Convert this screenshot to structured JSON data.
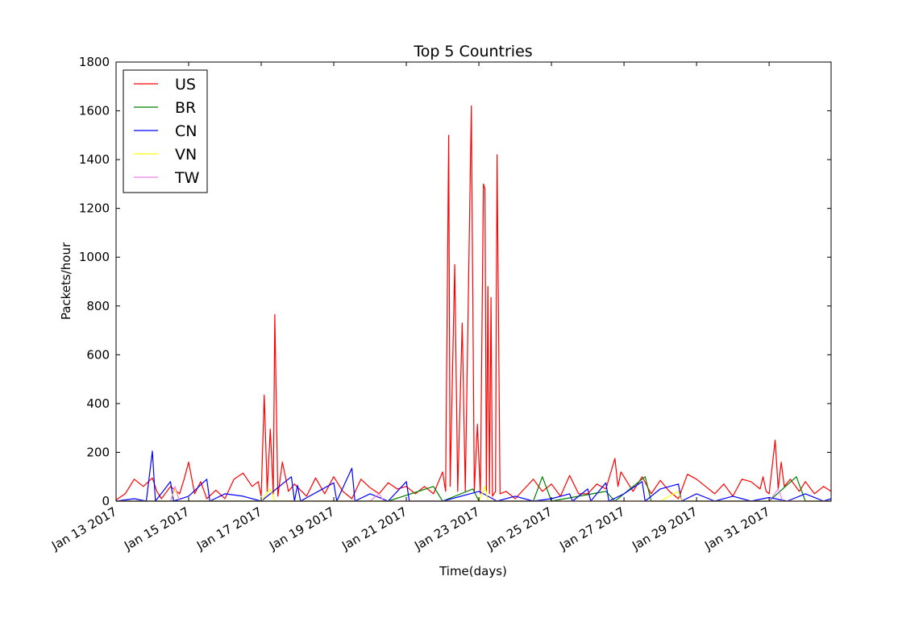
{
  "chart_data": {
    "type": "line",
    "title": "Top 5 Countries",
    "xlabel": "Time(days)",
    "ylabel": "Packets/hour",
    "ylim": [
      0,
      1800
    ],
    "xlim": [
      "2017-01-13",
      "2017-02-01T17:00"
    ],
    "x_ticks": [
      "Jan 13 2017",
      "Jan 15 2017",
      "Jan 17 2017",
      "Jan 19 2017",
      "Jan 21 2017",
      "Jan 23 2017",
      "Jan 25 2017",
      "Jan 27 2017",
      "Jan 29 2017",
      "Jan 31 2017"
    ],
    "y_ticks": [
      0,
      200,
      400,
      600,
      800,
      1000,
      1200,
      1400,
      1600,
      1800
    ],
    "legend_position": "upper-left",
    "grid": false,
    "series": [
      {
        "name": "US",
        "color": "#ff0000",
        "points": [
          [
            "2017-01-13T00:00",
            5
          ],
          [
            "2017-01-13T06:00",
            30
          ],
          [
            "2017-01-13T12:00",
            90
          ],
          [
            "2017-01-13T18:00",
            60
          ],
          [
            "2017-01-14T00:00",
            95
          ],
          [
            "2017-01-14T03:00",
            40
          ],
          [
            "2017-01-14T06:00",
            10
          ],
          [
            "2017-01-14T12:00",
            60
          ],
          [
            "2017-01-14T18:00",
            30
          ],
          [
            "2017-01-14T21:00",
            90
          ],
          [
            "2017-01-15T00:00",
            160
          ],
          [
            "2017-01-15T04:00",
            30
          ],
          [
            "2017-01-15T08:00",
            80
          ],
          [
            "2017-01-15T12:00",
            10
          ],
          [
            "2017-01-15T18:00",
            45
          ],
          [
            "2017-01-16T00:00",
            10
          ],
          [
            "2017-01-16T06:00",
            90
          ],
          [
            "2017-01-16T12:00",
            115
          ],
          [
            "2017-01-16T18:00",
            60
          ],
          [
            "2017-01-16T22:00",
            80
          ],
          [
            "2017-01-17T00:00",
            20
          ],
          [
            "2017-01-17T02:00",
            435
          ],
          [
            "2017-01-17T04:00",
            40
          ],
          [
            "2017-01-17T06:00",
            295
          ],
          [
            "2017-01-17T08:00",
            30
          ],
          [
            "2017-01-17T09:00",
            765
          ],
          [
            "2017-01-17T11:00",
            20
          ],
          [
            "2017-01-17T14:00",
            160
          ],
          [
            "2017-01-17T18:00",
            40
          ],
          [
            "2017-01-17T22:00",
            70
          ],
          [
            "2017-01-18T06:00",
            20
          ],
          [
            "2017-01-18T12:00",
            95
          ],
          [
            "2017-01-18T18:00",
            30
          ],
          [
            "2017-01-19T00:00",
            100
          ],
          [
            "2017-01-19T06:00",
            40
          ],
          [
            "2017-01-19T12:00",
            10
          ],
          [
            "2017-01-19T18:00",
            90
          ],
          [
            "2017-01-20T00:00",
            55
          ],
          [
            "2017-01-20T06:00",
            30
          ],
          [
            "2017-01-20T12:00",
            75
          ],
          [
            "2017-01-20T18:00",
            50
          ],
          [
            "2017-01-21T00:00",
            60
          ],
          [
            "2017-01-21T06:00",
            30
          ],
          [
            "2017-01-21T12:00",
            60
          ],
          [
            "2017-01-21T18:00",
            30
          ],
          [
            "2017-01-22T00:00",
            120
          ],
          [
            "2017-01-22T02:00",
            40
          ],
          [
            "2017-01-22T04:00",
            1500
          ],
          [
            "2017-01-22T05:00",
            60
          ],
          [
            "2017-01-22T08:00",
            970
          ],
          [
            "2017-01-22T10:00",
            40
          ],
          [
            "2017-01-22T13:00",
            730
          ],
          [
            "2017-01-22T15:00",
            40
          ],
          [
            "2017-01-22T19:00",
            1620
          ],
          [
            "2017-01-22T21:00",
            40
          ],
          [
            "2017-01-22T23:00",
            315
          ],
          [
            "2017-01-23T01:00",
            30
          ],
          [
            "2017-01-23T03:00",
            1300
          ],
          [
            "2017-01-23T04:00",
            1280
          ],
          [
            "2017-01-23T05:00",
            40
          ],
          [
            "2017-01-23T06:00",
            880
          ],
          [
            "2017-01-23T07:00",
            30
          ],
          [
            "2017-01-23T08:00",
            835
          ],
          [
            "2017-01-23T09:00",
            20
          ],
          [
            "2017-01-23T11:00",
            40
          ],
          [
            "2017-01-23T12:00",
            1420
          ],
          [
            "2017-01-23T14:00",
            30
          ],
          [
            "2017-01-23T18:00",
            40
          ],
          [
            "2017-01-24T00:00",
            10
          ],
          [
            "2017-01-24T06:00",
            50
          ],
          [
            "2017-01-24T12:00",
            90
          ],
          [
            "2017-01-24T18:00",
            40
          ],
          [
            "2017-01-25T00:00",
            70
          ],
          [
            "2017-01-25T06:00",
            20
          ],
          [
            "2017-01-25T12:00",
            105
          ],
          [
            "2017-01-25T18:00",
            30
          ],
          [
            "2017-01-26T00:00",
            30
          ],
          [
            "2017-01-26T06:00",
            70
          ],
          [
            "2017-01-26T12:00",
            50
          ],
          [
            "2017-01-26T18:00",
            175
          ],
          [
            "2017-01-26T20:00",
            60
          ],
          [
            "2017-01-26T22:00",
            120
          ],
          [
            "2017-01-27T06:00",
            40
          ],
          [
            "2017-01-27T12:00",
            100
          ],
          [
            "2017-01-27T18:00",
            30
          ],
          [
            "2017-01-28T00:00",
            85
          ],
          [
            "2017-01-28T06:00",
            40
          ],
          [
            "2017-01-28T12:00",
            10
          ],
          [
            "2017-01-28T18:00",
            110
          ],
          [
            "2017-01-29T00:00",
            90
          ],
          [
            "2017-01-29T06:00",
            60
          ],
          [
            "2017-01-29T12:00",
            30
          ],
          [
            "2017-01-29T18:00",
            70
          ],
          [
            "2017-01-30T00:00",
            20
          ],
          [
            "2017-01-30T06:00",
            90
          ],
          [
            "2017-01-30T12:00",
            80
          ],
          [
            "2017-01-30T18:00",
            50
          ],
          [
            "2017-01-30T20:00",
            100
          ],
          [
            "2017-01-30T22:00",
            40
          ],
          [
            "2017-01-31T00:00",
            30
          ],
          [
            "2017-01-31T04:00",
            250
          ],
          [
            "2017-01-31T06:00",
            50
          ],
          [
            "2017-01-31T08:00",
            160
          ],
          [
            "2017-01-31T10:00",
            60
          ],
          [
            "2017-01-31T14:00",
            90
          ],
          [
            "2017-01-31T20:00",
            40
          ],
          [
            "2017-02-01T00:00",
            80
          ],
          [
            "2017-02-01T06:00",
            30
          ],
          [
            "2017-02-01T12:00",
            60
          ],
          [
            "2017-02-01T17:00",
            40
          ]
        ]
      },
      {
        "name": "BR",
        "color": "#008000",
        "points": [
          [
            "2017-01-13T00:00",
            0
          ],
          [
            "2017-01-19T00:00",
            0
          ],
          [
            "2017-01-20T12:00",
            0
          ],
          [
            "2017-01-21T18:00",
            60
          ],
          [
            "2017-01-22T00:00",
            0
          ],
          [
            "2017-01-22T20:00",
            50
          ],
          [
            "2017-01-23T00:00",
            0
          ],
          [
            "2017-01-24T12:00",
            0
          ],
          [
            "2017-01-24T18:00",
            100
          ],
          [
            "2017-01-25T00:00",
            0
          ],
          [
            "2017-01-26T12:00",
            40
          ],
          [
            "2017-01-26T18:00",
            0
          ],
          [
            "2017-01-27T14:00",
            100
          ],
          [
            "2017-01-27T18:00",
            0
          ],
          [
            "2017-01-28T00:00",
            0
          ],
          [
            "2017-01-29T00:00",
            0
          ],
          [
            "2017-01-30T00:00",
            0
          ],
          [
            "2017-01-31T00:00",
            0
          ],
          [
            "2017-01-31T18:00",
            100
          ],
          [
            "2017-02-01T00:00",
            0
          ],
          [
            "2017-02-01T17:00",
            0
          ]
        ]
      },
      {
        "name": "CN",
        "color": "#0000ff",
        "points": [
          [
            "2017-01-13T00:00",
            0
          ],
          [
            "2017-01-13T12:00",
            10
          ],
          [
            "2017-01-13T20:00",
            0
          ],
          [
            "2017-01-14T00:00",
            205
          ],
          [
            "2017-01-14T02:00",
            0
          ],
          [
            "2017-01-14T12:00",
            80
          ],
          [
            "2017-01-14T14:00",
            0
          ],
          [
            "2017-01-15T00:00",
            20
          ],
          [
            "2017-01-15T12:00",
            90
          ],
          [
            "2017-01-15T14:00",
            0
          ],
          [
            "2017-01-16T00:00",
            30
          ],
          [
            "2017-01-16T12:00",
            20
          ],
          [
            "2017-01-17T00:00",
            0
          ],
          [
            "2017-01-17T20:00",
            100
          ],
          [
            "2017-01-17T22:00",
            0
          ],
          [
            "2017-01-18T00:00",
            65
          ],
          [
            "2017-01-18T02:00",
            0
          ],
          [
            "2017-01-19T00:00",
            75
          ],
          [
            "2017-01-19T02:00",
            0
          ],
          [
            "2017-01-19T12:00",
            135
          ],
          [
            "2017-01-19T14:00",
            0
          ],
          [
            "2017-01-20T00:00",
            30
          ],
          [
            "2017-01-20T12:00",
            0
          ],
          [
            "2017-01-21T00:00",
            80
          ],
          [
            "2017-01-21T02:00",
            0
          ],
          [
            "2017-01-22T00:00",
            0
          ],
          [
            "2017-01-23T00:00",
            40
          ],
          [
            "2017-01-23T12:00",
            0
          ],
          [
            "2017-01-24T00:00",
            20
          ],
          [
            "2017-01-24T12:00",
            0
          ],
          [
            "2017-01-25T00:00",
            10
          ],
          [
            "2017-01-25T12:00",
            30
          ],
          [
            "2017-01-25T14:00",
            0
          ],
          [
            "2017-01-26T00:00",
            50
          ],
          [
            "2017-01-26T02:00",
            0
          ],
          [
            "2017-01-26T12:00",
            75
          ],
          [
            "2017-01-26T14:00",
            0
          ],
          [
            "2017-01-27T00:00",
            30
          ],
          [
            "2017-01-27T12:00",
            80
          ],
          [
            "2017-01-27T14:00",
            0
          ],
          [
            "2017-01-28T00:00",
            50
          ],
          [
            "2017-01-28T12:00",
            70
          ],
          [
            "2017-01-28T14:00",
            0
          ],
          [
            "2017-01-29T00:00",
            30
          ],
          [
            "2017-01-29T12:00",
            0
          ],
          [
            "2017-01-30T00:00",
            20
          ],
          [
            "2017-01-30T12:00",
            0
          ],
          [
            "2017-01-31T00:00",
            15
          ],
          [
            "2017-01-31T12:00",
            0
          ],
          [
            "2017-02-01T00:00",
            30
          ],
          [
            "2017-02-01T12:00",
            0
          ],
          [
            "2017-02-01T17:00",
            10
          ]
        ]
      },
      {
        "name": "VN",
        "color": "#ffff00",
        "points": [
          [
            "2017-01-13T00:00",
            0
          ],
          [
            "2017-01-14T12:00",
            0
          ],
          [
            "2017-01-14T15:00",
            50
          ],
          [
            "2017-01-14T18:00",
            0
          ],
          [
            "2017-01-17T00:00",
            0
          ],
          [
            "2017-01-17T06:00",
            50
          ],
          [
            "2017-01-17T09:00",
            0
          ],
          [
            "2017-01-20T00:00",
            0
          ],
          [
            "2017-01-23T00:00",
            0
          ],
          [
            "2017-01-23T04:00",
            60
          ],
          [
            "2017-01-23T06:00",
            0
          ],
          [
            "2017-01-26T00:00",
            0
          ],
          [
            "2017-01-28T00:00",
            0
          ],
          [
            "2017-01-28T12:00",
            40
          ],
          [
            "2017-01-28T14:00",
            0
          ],
          [
            "2017-02-01T17:00",
            0
          ]
        ]
      },
      {
        "name": "TW",
        "color": "#ee82ee",
        "points": [
          [
            "2017-01-13T00:00",
            0
          ],
          [
            "2017-01-14T12:00",
            0
          ],
          [
            "2017-01-14T15:00",
            60
          ],
          [
            "2017-01-14T18:00",
            0
          ],
          [
            "2017-01-20T00:00",
            0
          ],
          [
            "2017-01-20T06:00",
            30
          ],
          [
            "2017-01-20T09:00",
            0
          ],
          [
            "2017-01-31T00:00",
            0
          ],
          [
            "2017-01-31T06:00",
            50
          ],
          [
            "2017-01-31T09:00",
            0
          ],
          [
            "2017-02-01T17:00",
            0
          ]
        ]
      }
    ]
  }
}
